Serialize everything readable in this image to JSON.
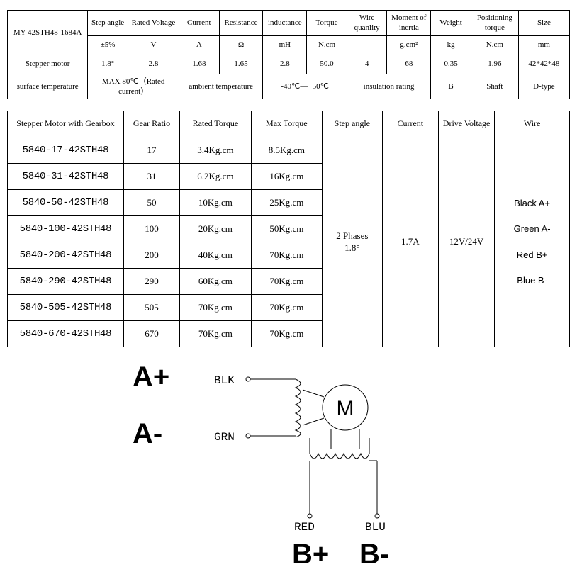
{
  "table1": {
    "headers": [
      "Stepper motor",
      "Step angle",
      "Rated Voltage",
      "Current",
      "Resistance",
      "inductance",
      "Torque",
      "Wire quanlity",
      "Moment of inertia",
      "Weight",
      "Positioning torque",
      "Size"
    ],
    "units": [
      "",
      "±5%",
      "V",
      "A",
      "Ω",
      "mH",
      "N.cm",
      "—",
      "g.cm²",
      "kg",
      "N.cm",
      "mm"
    ],
    "model": "MY-42STH48-1684A",
    "values": [
      "1.8°",
      "2.8",
      "1.68",
      "1.65",
      "2.8",
      "50.0",
      "4",
      "68",
      "0.35",
      "1.96",
      "42*42*48"
    ],
    "row3": {
      "c1": "surface temperature",
      "c2": "MAX 80℃（Rated current）",
      "c3": "ambient temperature",
      "c4": "-40℃—+50℃",
      "c5": "insulation rating",
      "c6": "B",
      "c7": "Shaft",
      "c8": "D-type"
    }
  },
  "table2": {
    "headers": [
      "Stepper Motor with Gearbox",
      "Gear Ratio",
      "Rated Torque",
      "Max Torque",
      "Step angle",
      "Current",
      "Drive Voltage",
      "Wire"
    ],
    "rows": [
      {
        "model": "5840-17-42STH48",
        "ratio": "17",
        "rated": "3.4Kg.cm",
        "max": "8.5Kg.cm"
      },
      {
        "model": "5840-31-42STH48",
        "ratio": "31",
        "rated": "6.2Kg.cm",
        "max": "16Kg.cm"
      },
      {
        "model": "5840-50-42STH48",
        "ratio": "50",
        "rated": "10Kg.cm",
        "max": "25Kg.cm"
      },
      {
        "model": "5840-100-42STH48",
        "ratio": "100",
        "rated": "20Kg.cm",
        "max": "50Kg.cm"
      },
      {
        "model": "5840-200-42STH48",
        "ratio": "200",
        "rated": "40Kg.cm",
        "max": "70Kg.cm"
      },
      {
        "model": "5840-290-42STH48",
        "ratio": "290",
        "rated": "60Kg.cm",
        "max": "70Kg.cm"
      },
      {
        "model": "5840-505-42STH48",
        "ratio": "505",
        "rated": "70Kg.cm",
        "max": "70Kg.cm"
      },
      {
        "model": "5840-670-42STH48",
        "ratio": "670",
        "rated": "70Kg.cm",
        "max": "70Kg.cm"
      }
    ],
    "step_angle": "2 Phases\n1.8°",
    "current": "1.7A",
    "drive_voltage": "12V/24V",
    "wire": "Black A+\nGreen A-\nRed  B+\nBlue B-"
  },
  "diagram": {
    "a_plus": "A+",
    "a_minus": "A-",
    "b_plus": "B+",
    "b_minus": "B-",
    "blk": "BLK",
    "grn": "GRN",
    "red": "RED",
    "blu": "BLU",
    "m": "M"
  },
  "style": {
    "stroke": "#000000",
    "stroke_width": 1
  }
}
